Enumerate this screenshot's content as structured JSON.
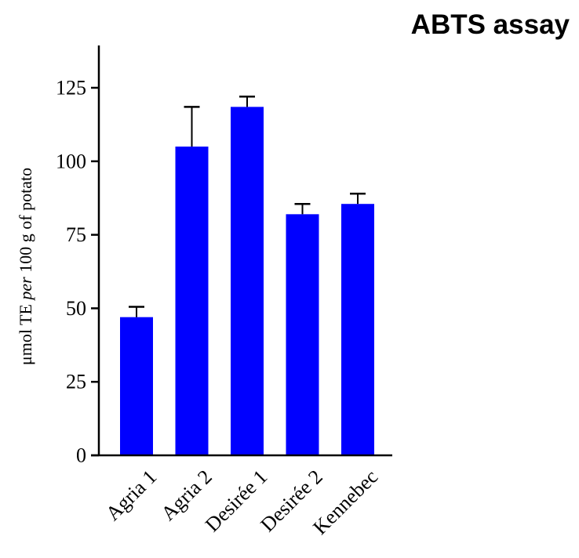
{
  "chart_data": {
    "type": "bar",
    "title": "ABTS assay",
    "ylabel_parts": [
      {
        "text": "μmol TE ",
        "italic": false
      },
      {
        "text": "per",
        "italic": true
      },
      {
        "text": " 100 g of potato",
        "italic": false
      }
    ],
    "xlabel": "",
    "categories": [
      "Agria 1",
      "Agria 2",
      "Desirée 1",
      "Desirée 2",
      "Kennebec"
    ],
    "values": [
      47,
      105,
      118.5,
      82,
      85.5
    ],
    "errors": [
      3.5,
      13.5,
      3.5,
      3.5,
      3.5
    ],
    "yticks": [
      0,
      25,
      50,
      75,
      100,
      125
    ],
    "ylim": [
      0,
      140
    ],
    "bar_color": "#0000FF",
    "axis_color": "#000000",
    "grid": false,
    "legend": "none"
  }
}
